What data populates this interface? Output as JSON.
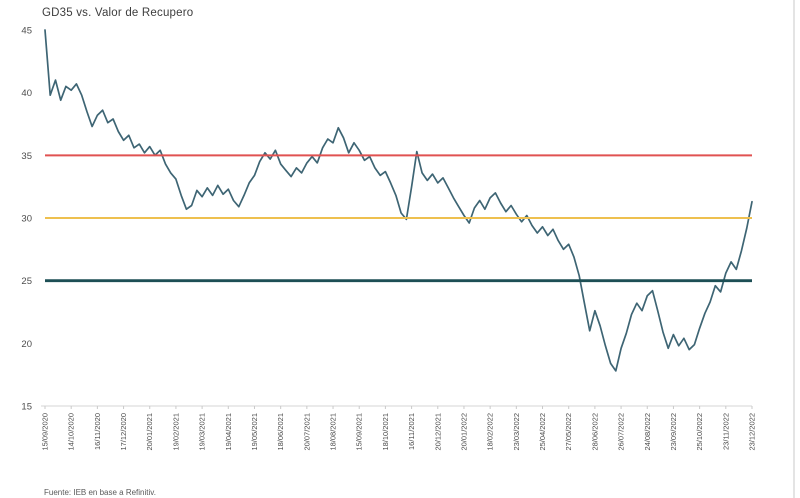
{
  "chart_data": {
    "type": "line",
    "title": "GD35 vs. Valor de Recupero",
    "source_note": "Fuente: IEB en base a Refinitiv.",
    "xlabel": "",
    "ylabel": "",
    "ylim": [
      15,
      45
    ],
    "y_ticks": [
      15,
      20,
      25,
      30,
      35,
      40,
      45
    ],
    "grid": false,
    "legend": "none",
    "axis_color": "#4d4d4d",
    "x_tick_labels": [
      "15/09/2020",
      "14/10/2020",
      "16/11/2020",
      "17/12/2020",
      "20/01/2021",
      "19/02/2021",
      "19/03/2021",
      "19/04/2021",
      "19/05/2021",
      "18/06/2021",
      "20/07/2021",
      "18/08/2021",
      "15/09/2021",
      "18/10/2021",
      "16/11/2021",
      "20/12/2021",
      "20/01/2022",
      "18/02/2022",
      "23/03/2022",
      "25/04/2022",
      "27/05/2022",
      "28/06/2022",
      "26/07/2022",
      "24/08/2022",
      "23/09/2022",
      "25/10/2022",
      "23/11/2022",
      "23/12/2022"
    ],
    "series": [
      {
        "name": "GD35",
        "color": "#3e6574",
        "values": [
          45.0,
          39.8,
          41.0,
          39.4,
          40.5,
          40.2,
          40.7,
          39.8,
          38.5,
          37.3,
          38.2,
          38.6,
          37.6,
          37.9,
          36.9,
          36.2,
          36.6,
          35.6,
          35.9,
          35.2,
          35.7,
          35.0,
          35.4,
          34.3,
          33.6,
          33.1,
          31.8,
          30.7,
          31.0,
          32.2,
          31.7,
          32.4,
          31.8,
          32.6,
          31.9,
          32.3,
          31.4,
          30.9,
          31.8,
          32.8,
          33.4,
          34.5,
          35.2,
          34.7,
          35.4,
          34.3,
          33.8,
          33.3,
          34.0,
          33.6,
          34.4,
          34.9,
          34.4,
          35.6,
          36.3,
          36.0,
          37.2,
          36.4,
          35.2,
          36.0,
          35.4,
          34.6,
          34.9,
          34.0,
          33.4,
          33.7,
          32.8,
          31.8,
          30.4,
          29.9,
          32.5,
          35.3,
          33.6,
          33.0,
          33.5,
          32.8,
          33.2,
          32.4,
          31.6,
          30.9,
          30.2,
          29.6,
          30.8,
          31.4,
          30.7,
          31.6,
          32.0,
          31.2,
          30.5,
          31.0,
          30.3,
          29.7,
          30.2,
          29.4,
          28.8,
          29.3,
          28.6,
          29.1,
          28.2,
          27.5,
          27.9,
          26.9,
          25.4,
          23.2,
          21.0,
          22.6,
          21.4,
          19.8,
          18.4,
          17.8,
          19.6,
          20.8,
          22.3,
          23.2,
          22.6,
          23.8,
          24.2,
          22.6,
          20.9,
          19.6,
          20.7,
          19.8,
          20.4,
          19.5,
          19.9,
          21.2,
          22.4,
          23.3,
          24.6,
          24.1,
          25.6,
          26.5,
          25.9,
          27.4,
          29.2,
          31.3
        ]
      }
    ],
    "reference_lines": [
      {
        "value": 35,
        "color": "#e05251"
      },
      {
        "value": 30,
        "color": "#eec04f"
      },
      {
        "value": 25,
        "color": "#1d4f55"
      }
    ]
  }
}
